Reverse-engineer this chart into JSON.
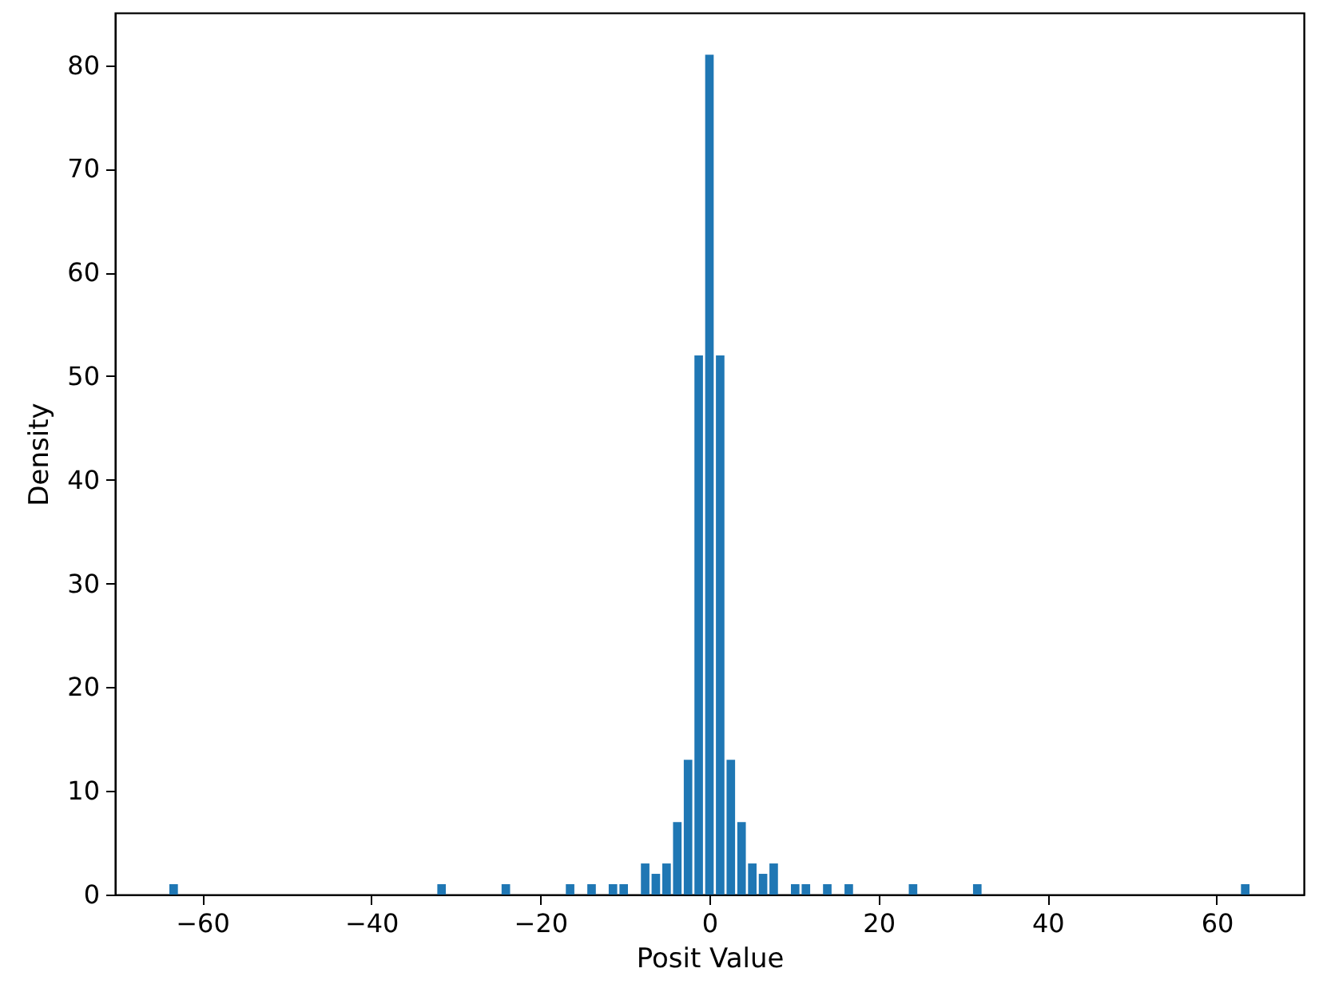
{
  "chart_data": {
    "type": "bar",
    "xlabel": "Posit Value",
    "ylabel": "Density",
    "x": [
      -63.37,
      -31.68,
      -24.08,
      -16.48,
      -13.94,
      -11.41,
      -10.14,
      -7.6,
      -6.34,
      -5.07,
      -3.8,
      -2.53,
      -1.27,
      0,
      1.27,
      2.53,
      3.8,
      5.07,
      6.34,
      7.6,
      10.14,
      11.41,
      13.94,
      16.48,
      24.08,
      31.68,
      63.37
    ],
    "values": [
      1,
      1,
      1,
      1,
      1,
      1,
      1,
      3,
      2,
      3,
      7,
      13,
      52,
      81,
      52,
      13,
      7,
      3,
      2,
      3,
      1,
      1,
      1,
      1,
      1,
      1,
      1
    ],
    "color": "#1f77b4",
    "xlim": [
      -70.3,
      70.3
    ],
    "xticks": [
      -60,
      -40,
      -20,
      0,
      20,
      40,
      60
    ],
    "ylim": [
      0,
      85.05
    ],
    "yticks": [
      0,
      10,
      20,
      30,
      40,
      50,
      60,
      70,
      80
    ],
    "grid": false
  }
}
